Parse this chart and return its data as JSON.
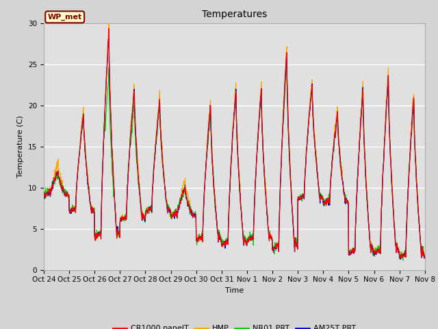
{
  "title": "Temperatures",
  "xlabel": "Time",
  "ylabel": "Temperature (C)",
  "ylim": [
    0,
    30
  ],
  "background_color": "#d4d4d4",
  "plot_bg_color": "#e0e0e0",
  "grid_color": "#ffffff",
  "series_colors": {
    "CR1000 panelT": "#ff0000",
    "HMP": "#ffa500",
    "NR01 PRT": "#00cc00",
    "AM25T PRT": "#0000cc"
  },
  "series_names": [
    "CR1000 panelT",
    "HMP",
    "NR01 PRT",
    "AM25T PRT"
  ],
  "x_tick_labels": [
    "Oct 24",
    "Oct 25",
    "Oct 26",
    "Oct 27",
    "Oct 28",
    "Oct 29",
    "Oct 30",
    "Oct 31",
    "Nov 1",
    "Nov 2",
    "Nov 3",
    "Nov 4",
    "Nov 5",
    "Nov 6",
    "Nov 7",
    "Nov 8"
  ],
  "annotation_text": "WP_met",
  "annotation_bg": "#ffffcc",
  "annotation_border": "#800000",
  "annotation_text_color": "#800000",
  "title_fontsize": 10,
  "axis_label_fontsize": 8,
  "tick_fontsize": 7.5,
  "legend_fontsize": 8,
  "daily_data": {
    "0": [
      9.0,
      12.0,
      11.5
    ],
    "1": [
      7.0,
      19.0,
      18.5
    ],
    "2": [
      4.0,
      29.0,
      24.0
    ],
    "3": [
      6.0,
      22.0,
      20.0
    ],
    "4": [
      7.0,
      20.5,
      19.5
    ],
    "5": [
      6.5,
      10.0,
      9.5
    ],
    "6": [
      3.5,
      20.0,
      19.0
    ],
    "7": [
      3.0,
      22.0,
      21.5
    ],
    "8": [
      3.5,
      22.0,
      21.5
    ],
    "9": [
      2.5,
      26.5,
      25.0
    ],
    "10": [
      8.5,
      22.5,
      22.0
    ],
    "11": [
      8.0,
      19.0,
      18.5
    ],
    "12": [
      2.0,
      22.0,
      21.5
    ],
    "13": [
      2.0,
      23.5,
      23.0
    ],
    "14": [
      1.5,
      21.0,
      20.5
    ]
  }
}
